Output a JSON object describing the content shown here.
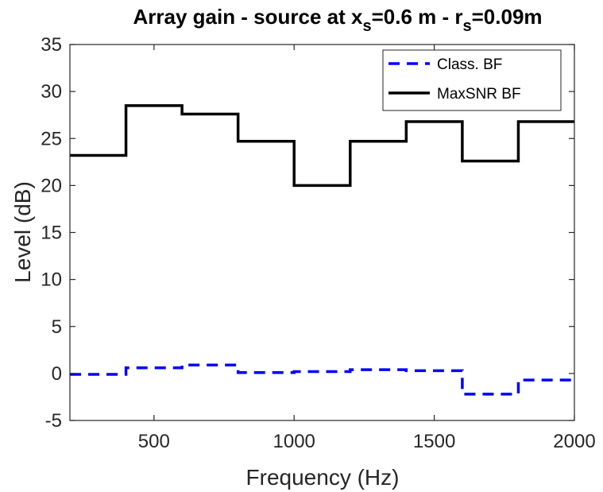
{
  "chart_data": {
    "type": "line",
    "title": {
      "prefix": "Array gain - source at x",
      "sub1": "s",
      "middle": "=0.6 m - r",
      "sub2": "s",
      "suffix": "=0.09m"
    },
    "xlabel": "Frequency (Hz)",
    "ylabel": "Level (dB)",
    "xlim": [
      200,
      2000
    ],
    "ylim": [
      -5,
      35
    ],
    "xticks": [
      500,
      1000,
      1500,
      2000
    ],
    "yticks": [
      -5,
      0,
      5,
      10,
      15,
      20,
      25,
      30,
      35
    ],
    "grid": false,
    "legend_position": "top-right",
    "series": [
      {
        "name": "Class. BF",
        "style": "dashed",
        "color": "#0000ff",
        "x": [
          200,
          400,
          400,
          600,
          600,
          800,
          800,
          1000,
          1000,
          1200,
          1200,
          1400,
          1400,
          1600,
          1600,
          1800,
          1800,
          2000
        ],
        "y": [
          -0.1,
          -0.1,
          0.6,
          0.6,
          0.9,
          0.9,
          0.1,
          0.1,
          0.2,
          0.2,
          0.4,
          0.4,
          0.3,
          0.3,
          -2.2,
          -2.2,
          -0.7,
          -0.7
        ]
      },
      {
        "name": "MaxSNR BF",
        "style": "solid",
        "color": "#000000",
        "x": [
          200,
          400,
          400,
          600,
          600,
          800,
          800,
          1000,
          1000,
          1200,
          1200,
          1400,
          1400,
          1600,
          1600,
          1800,
          1800,
          2000
        ],
        "y": [
          23.2,
          23.2,
          28.5,
          28.5,
          27.6,
          27.6,
          24.7,
          24.7,
          20.0,
          20.0,
          24.7,
          24.7,
          26.8,
          26.8,
          22.6,
          22.6,
          26.8,
          26.8
        ]
      }
    ]
  }
}
